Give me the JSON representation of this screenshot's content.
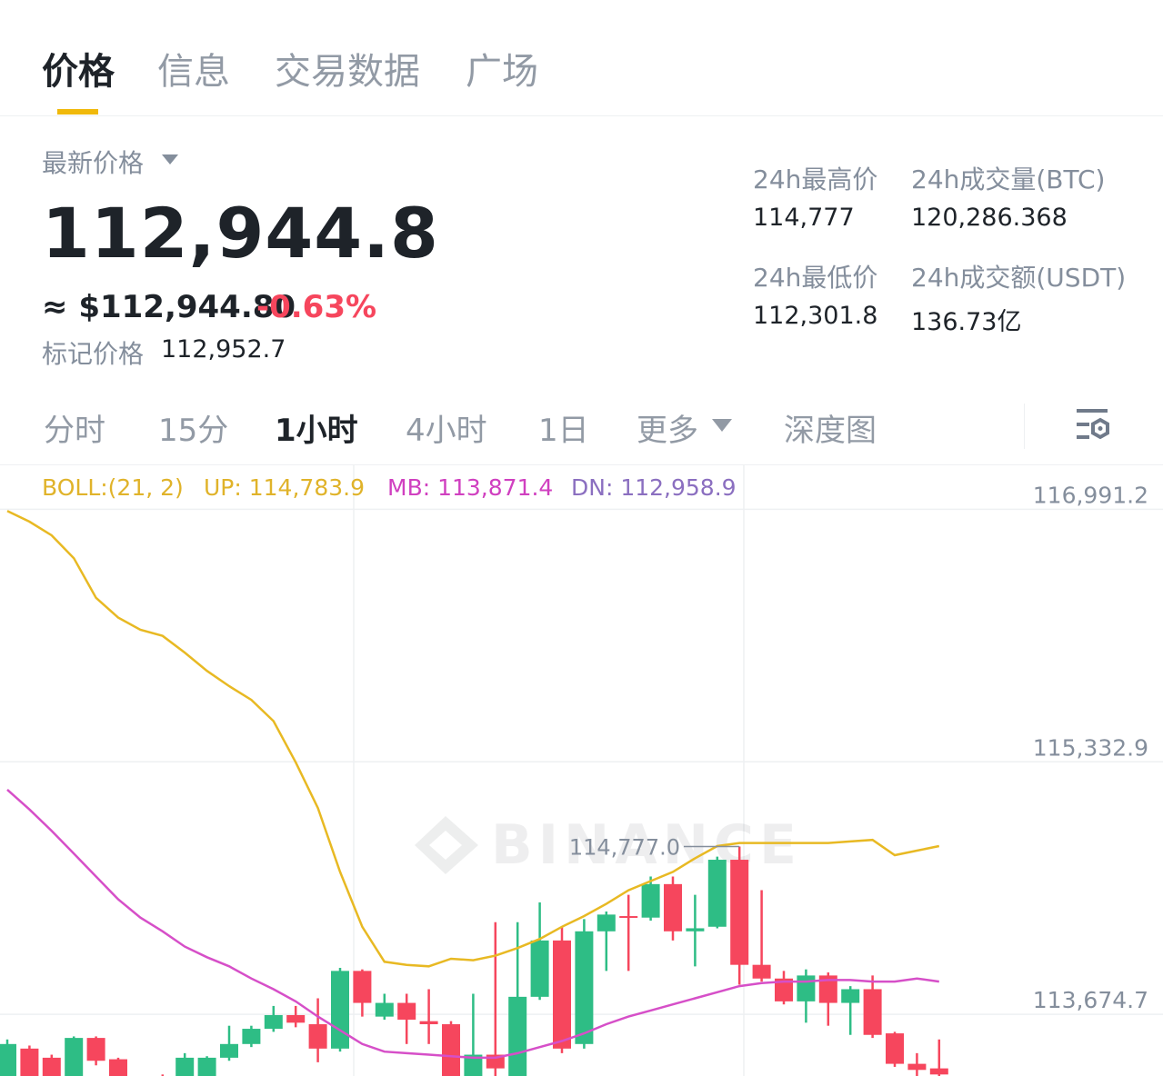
{
  "tabs": {
    "items": [
      "价格",
      "信息",
      "交易数据",
      "广场"
    ],
    "active": 0
  },
  "price": {
    "label": "最新价格",
    "last": "112,944.8",
    "usd": "≈ $112,944.80",
    "change": "-0.63%",
    "mark_label": "标记价格",
    "mark": "112,952.7"
  },
  "stats": [
    {
      "label": "24h最高价",
      "value": "114,777"
    },
    {
      "label": "24h成交量(BTC)",
      "value": "120,286.368"
    },
    {
      "label": "24h最低价",
      "value": "112,301.8"
    },
    {
      "label": "24h成交额(USDT)",
      "value": "136.73亿"
    }
  ],
  "timeframes": {
    "items": [
      "分时",
      "15分",
      "1小时",
      "4小时",
      "1日",
      "更多",
      "深度图"
    ],
    "active": 2
  },
  "chart_data": {
    "type": "candlestick",
    "open": [
      113240,
      113450,
      113390,
      113210,
      113520,
      113380,
      113140,
      113270,
      113240,
      113270,
      113390,
      113480,
      113580,
      113670,
      113610,
      113450,
      113960,
      113660,
      113750,
      113630,
      113610,
      113240,
      113410,
      113270,
      113790,
      114160,
      113480,
      114220,
      114320,
      114310,
      114530,
      114220,
      114250,
      114690,
      114000,
      113910,
      113760,
      113930,
      113750,
      113840,
      113550,
      113350,
      113320
    ],
    "high": [
      113510,
      113470,
      113410,
      113530,
      113530,
      113390,
      113250,
      113280,
      113420,
      113400,
      113600,
      113600,
      113730,
      113730,
      113780,
      113980,
      113970,
      113810,
      113810,
      113840,
      113630,
      113810,
      114280,
      114280,
      114410,
      114250,
      114300,
      114350,
      114460,
      114580,
      114580,
      114460,
      114710,
      114777,
      114490,
      113960,
      113970,
      113950,
      113860,
      113930,
      113560,
      113420,
      113510
    ],
    "low": [
      113140,
      113140,
      113170,
      113170,
      113340,
      113140,
      113090,
      113110,
      113190,
      113210,
      113370,
      113460,
      113560,
      113590,
      113360,
      113430,
      113660,
      113640,
      113480,
      113480,
      113190,
      113210,
      113270,
      113240,
      113770,
      113420,
      113450,
      113960,
      113960,
      114290,
      114160,
      113990,
      114240,
      113870,
      113890,
      113740,
      113620,
      113600,
      113540,
      113520,
      113330,
      113190,
      113190
    ],
    "close": [
      113480,
      113210,
      113240,
      113520,
      113370,
      113190,
      113230,
      113180,
      113390,
      113390,
      113480,
      113580,
      113670,
      113620,
      113450,
      113960,
      113750,
      113750,
      113640,
      113610,
      113240,
      113410,
      113320,
      113790,
      114160,
      113450,
      114220,
      114330,
      114310,
      114530,
      114220,
      114240,
      114690,
      114000,
      113910,
      113760,
      113930,
      113750,
      113840,
      113540,
      113350,
      113310,
      113280
    ],
    "up_color": "#2ebd85",
    "down_color": "#f6465d",
    "overlays": [
      {
        "color": "#e8b923",
        "values": [
          116980,
          116910,
          116820,
          116670,
          116410,
          116280,
          116200,
          116160,
          116050,
          115930,
          115830,
          115740,
          115600,
          115330,
          115030,
          114610,
          114250,
          114020,
          114000,
          113990,
          114040,
          114030,
          114060,
          114110,
          114170,
          114250,
          114320,
          114400,
          114490,
          114550,
          114610,
          114700,
          114780,
          114800,
          114800,
          114800,
          114800,
          114800,
          114810,
          114820,
          114720,
          114750,
          114780
        ]
      },
      {
        "color": "#d64fc8",
        "values": [
          115150,
          115020,
          114880,
          114730,
          114580,
          114430,
          114310,
          114220,
          114120,
          114050,
          113990,
          113910,
          113840,
          113760,
          113660,
          113570,
          113480,
          113430,
          113420,
          113410,
          113400,
          113390,
          113390,
          113420,
          113460,
          113500,
          113550,
          113610,
          113660,
          113700,
          113740,
          113780,
          113820,
          113860,
          113880,
          113890,
          113890,
          113900,
          113900,
          113890,
          113890,
          113910,
          113890
        ]
      }
    ],
    "legend": [
      {
        "text": "BOLL:(21, 2)",
        "color": "#e0b32a"
      },
      {
        "text": "UP: 114,783.9",
        "color": "#e0b32a"
      },
      {
        "text": "MB: 113,871.4",
        "color": "#d040c0"
      },
      {
        "text": "DN: 112,958.9",
        "color": "#8b6fc0"
      }
    ],
    "max_marker": {
      "value": 114777,
      "label": "114,777.0"
    },
    "watermark": "BINANCE",
    "ylim": [
      113270,
      117280
    ],
    "yticks": [
      {
        "value": 113674.7,
        "label": "113,674.7"
      },
      {
        "value": 115332.9,
        "label": "115,332.9"
      },
      {
        "value": 116991.2,
        "label": "116,991.2"
      }
    ],
    "grid": true
  }
}
